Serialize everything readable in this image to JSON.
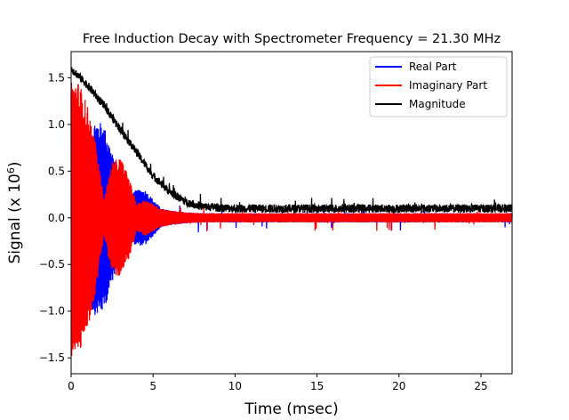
{
  "chart_data": {
    "type": "line",
    "title": "Free Induction Decay with Spectrometer Frequency = 21.30 MHz",
    "xlabel": "Time (msec)",
    "ylabel": {
      "prefix": "Signal (x 10",
      "superscript": "6",
      "suffix": ")"
    },
    "xlim": [
      0,
      26.9
    ],
    "ylim": [
      -1.67,
      1.78
    ],
    "x_ticks": [
      0,
      5,
      10,
      15,
      20,
      25
    ],
    "x_tick_labels": [
      "0",
      "5",
      "10",
      "15",
      "20",
      "25"
    ],
    "y_ticks": [
      -1.5,
      -1.0,
      -0.5,
      0.0,
      0.5,
      1.0,
      1.5
    ],
    "y_tick_labels": [
      "−1.5",
      "−1.0",
      "−0.5",
      "0.0",
      "0.5",
      "1.0",
      "1.5"
    ],
    "grid": false,
    "legend_position": "top-right",
    "series": [
      {
        "name": "Real Part",
        "color": "#0000ff",
        "style": "beating-oscillation",
        "envelope_samples": {
          "x": [
            0,
            0.5,
            1,
            1.5,
            2,
            2.5,
            3,
            3.5,
            4,
            4.5,
            5,
            5.5,
            6,
            6.5,
            7,
            8,
            10,
            15,
            20,
            26.9
          ],
          "y": [
            0.0,
            0.55,
            0.95,
            1.05,
            1.0,
            0.7,
            0.35,
            0.25,
            0.3,
            0.3,
            0.2,
            0.1,
            0.08,
            0.07,
            0.06,
            0.05,
            0.05,
            0.05,
            0.05,
            0.05
          ]
        }
      },
      {
        "name": "Imaginary Part",
        "color": "#ff0000",
        "style": "beating-oscillation",
        "envelope_samples": {
          "x": [
            0,
            0.5,
            1,
            1.5,
            2,
            2.5,
            3,
            3.5,
            4,
            4.5,
            5,
            5.5,
            6,
            6.5,
            7,
            8,
            10,
            15,
            20,
            26.9
          ],
          "y": [
            1.5,
            1.45,
            1.2,
            0.8,
            0.2,
            0.6,
            0.65,
            0.45,
            0.15,
            0.2,
            0.15,
            0.1,
            0.08,
            0.07,
            0.06,
            0.05,
            0.05,
            0.05,
            0.05,
            0.05
          ]
        }
      },
      {
        "name": "Magnitude",
        "color": "#000000",
        "style": "noisy-decay",
        "samples": {
          "x": [
            0,
            1,
            2,
            3,
            4,
            5,
            6,
            7,
            8,
            10,
            12,
            15,
            20,
            26.9
          ],
          "y": [
            1.6,
            1.42,
            1.2,
            0.95,
            0.7,
            0.45,
            0.28,
            0.17,
            0.12,
            0.1,
            0.1,
            0.1,
            0.1,
            0.1
          ]
        }
      }
    ]
  }
}
